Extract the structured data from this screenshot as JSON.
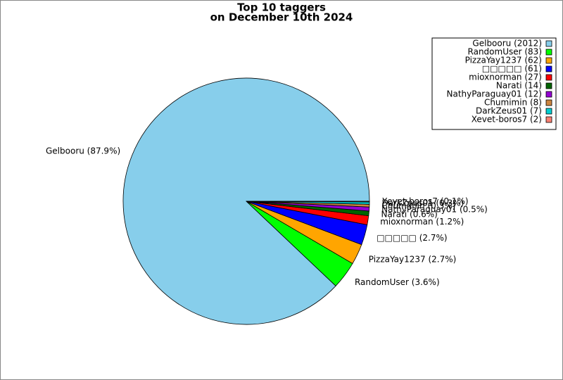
{
  "chart_data": {
    "type": "pie",
    "title": "Top 10 taggers",
    "subtitle": "on December 10th 2024",
    "categories": [
      "Gelbooru",
      "RandomUser",
      "PizzaYay1237",
      "□□□□□",
      "mioxnorman",
      "Narati",
      "NathyParaguay01",
      "Chumimin",
      "DarkZeus01",
      "Xevet-boros7"
    ],
    "values": [
      2012,
      83,
      62,
      61,
      27,
      14,
      12,
      8,
      7,
      2
    ],
    "value_labels": [
      "Gelbooru (87.9%)",
      "RandomUser (3.6%)",
      "PizzaYay1237 (2.7%)",
      "□□□□□ (2.7%)",
      "mioxnorman (1.2%)",
      "Narati (0.6%)",
      "NathyParaguay01 (0.5%)",
      "Chumimin (0.3%)",
      "DarkZeus01 (0.3%)",
      "Xevet-boros7 (0.1%)"
    ],
    "legend_labels": [
      "Gelbooru (2012)",
      "RandomUser (83)",
      "PizzaYay1237 (62)",
      "□□□□□ (61)",
      "mioxnorman (27)",
      "Narati (14)",
      "NathyParaguay01 (12)",
      "Chumimin (8)",
      "DarkZeus01 (7)",
      "Xevet-boros7 (2)"
    ],
    "colors": [
      "#87ceeb",
      "#00ff00",
      "#ffa500",
      "#0000ff",
      "#ff0000",
      "#006400",
      "#9400d3",
      "#cd853f",
      "#00ced1",
      "#fa8072"
    ],
    "legend": "upper right"
  }
}
